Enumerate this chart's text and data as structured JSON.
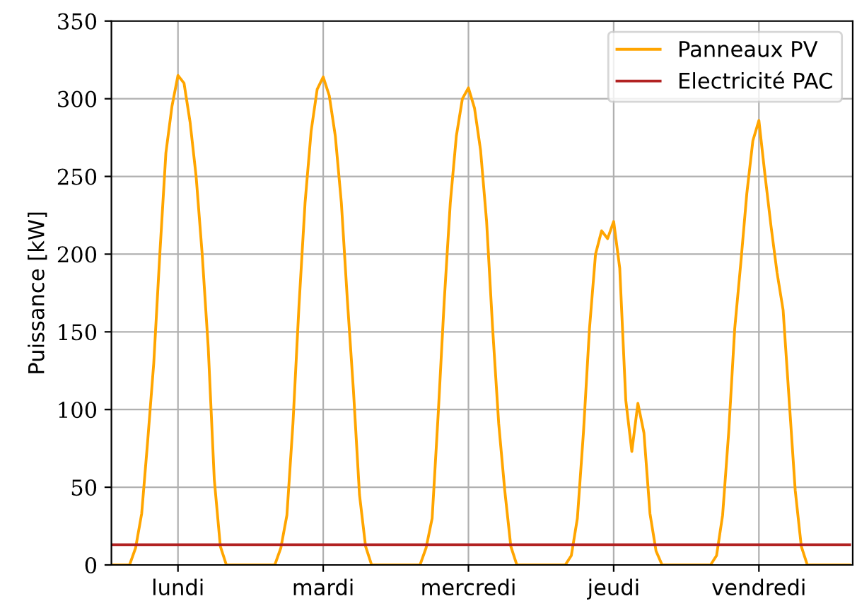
{
  "chart_data": {
    "type": "line",
    "ylabel": "Puissance [kW]",
    "categories": [
      null,
      null,
      null,
      null,
      null,
      null,
      null,
      null,
      null,
      null,
      null,
      "lundi",
      null,
      null,
      null,
      null,
      null,
      null,
      null,
      null,
      null,
      null,
      null,
      null,
      null,
      null,
      null,
      null,
      null,
      null,
      null,
      null,
      null,
      null,
      null,
      "mardi",
      null,
      null,
      null,
      null,
      null,
      null,
      null,
      null,
      null,
      null,
      null,
      null,
      null,
      null,
      null,
      null,
      null,
      null,
      null,
      null,
      null,
      null,
      null,
      "mercredi",
      null,
      null,
      null,
      null,
      null,
      null,
      null,
      null,
      null,
      null,
      null,
      null,
      null,
      null,
      null,
      null,
      null,
      null,
      null,
      null,
      null,
      null,
      null,
      "jeudi",
      null,
      null,
      null,
      null,
      null,
      null,
      null,
      null,
      null,
      null,
      null,
      null,
      null,
      null,
      null,
      null,
      null,
      null,
      null,
      null,
      null,
      null,
      null,
      "vendredi",
      null,
      null,
      null,
      null,
      null,
      null,
      null,
      null,
      null,
      null,
      null,
      null,
      null,
      null,
      null
    ],
    "series": [
      {
        "name": "Panneaux PV",
        "color": "#ffa500",
        "values": [
          0,
          0,
          0,
          0,
          11,
          33,
          80,
          130,
          200,
          265,
          295,
          315,
          310,
          285,
          250,
          200,
          140,
          55,
          12,
          0,
          0,
          0,
          0,
          0,
          0,
          0,
          0,
          0,
          11,
          32,
          91,
          167,
          233,
          279,
          306,
          314,
          302,
          276,
          233,
          170,
          112,
          45,
          12,
          0,
          0,
          0,
          0,
          0,
          0,
          0,
          0,
          0,
          11,
          30,
          97,
          170,
          233,
          276,
          300,
          307,
          294,
          267,
          221,
          152,
          91,
          48,
          12,
          0,
          0,
          0,
          0,
          0,
          0,
          0,
          0,
          0,
          6,
          30,
          85,
          152,
          200,
          215,
          210,
          221,
          191,
          106,
          73,
          104,
          85,
          33,
          9,
          0,
          0,
          0,
          0,
          0,
          0,
          0,
          0,
          0,
          6,
          32,
          85,
          152,
          194,
          239,
          273,
          286,
          251,
          218,
          188,
          164,
          106,
          48,
          12,
          0,
          0,
          0,
          0,
          0,
          0,
          0,
          0
        ]
      },
      {
        "name": "Electricité PAC",
        "color": "#b22222",
        "values": [
          13,
          13,
          13,
          13,
          13,
          13,
          13,
          13,
          13,
          13,
          13,
          13,
          13,
          13,
          13,
          13,
          13,
          13,
          13,
          13,
          13,
          13,
          13,
          13,
          13,
          13,
          13,
          13,
          13,
          13,
          13,
          13,
          13,
          13,
          13,
          13,
          13,
          13,
          13,
          13,
          13,
          13,
          13,
          13,
          13,
          13,
          13,
          13,
          13,
          13,
          13,
          13,
          13,
          13,
          13,
          13,
          13,
          13,
          13,
          13,
          13,
          13,
          13,
          13,
          13,
          13,
          13,
          13,
          13,
          13,
          13,
          13,
          13,
          13,
          13,
          13,
          13,
          13,
          13,
          13,
          13,
          13,
          13,
          13,
          13,
          13,
          13,
          13,
          13,
          13,
          13,
          13,
          13,
          13,
          13,
          13,
          13,
          13,
          13,
          13,
          13,
          13,
          13,
          13,
          13,
          13,
          13,
          13,
          13,
          13,
          13,
          13,
          13,
          13,
          13,
          13,
          13,
          13,
          13,
          13,
          13,
          13,
          13
        ]
      }
    ],
    "ylim": [
      0,
      350
    ],
    "yticks": [
      0,
      50,
      100,
      150,
      200,
      250,
      300,
      350
    ],
    "grid": true,
    "legend": "top right"
  }
}
